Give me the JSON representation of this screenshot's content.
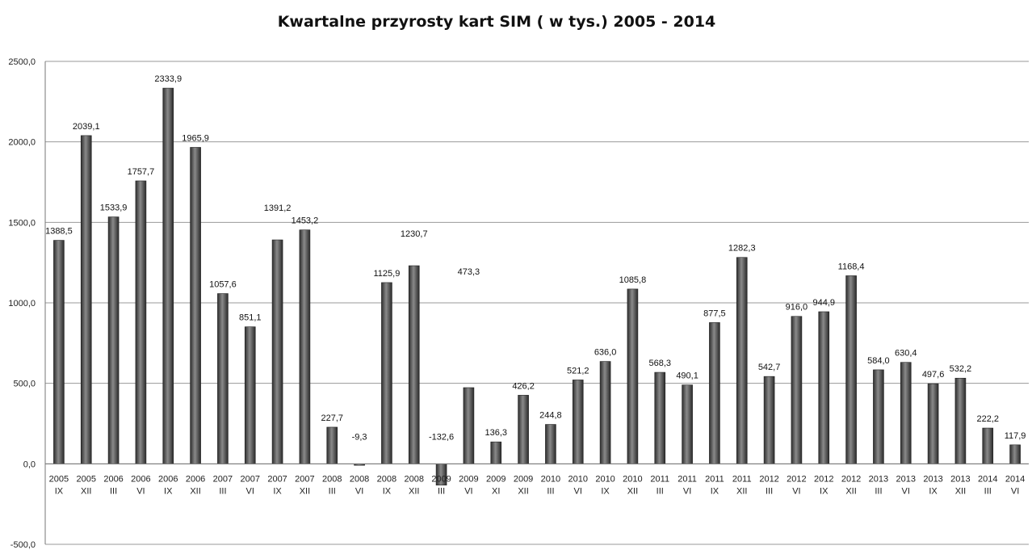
{
  "chart_data": {
    "type": "bar",
    "title": "Kwartalne przyrosty kart SIM  ( w tys.) 2005 - 2014",
    "xlabel": "",
    "ylabel": "",
    "ylim": [
      -500,
      2500
    ],
    "y_ticks": [
      "-500,0",
      "0,0",
      "500,0",
      "1000,0",
      "1500,0",
      "2000,0",
      "2500,0"
    ],
    "y_tick_values": [
      -500,
      0,
      500,
      1000,
      1500,
      2000,
      2500
    ],
    "grid": true,
    "legend": "none",
    "bar_color": "#4a4a4a",
    "categories": [
      {
        "year": "2005",
        "q": "IX"
      },
      {
        "year": "2005",
        "q": "XII"
      },
      {
        "year": "2006",
        "q": "III"
      },
      {
        "year": "2006",
        "q": "VI"
      },
      {
        "year": "2006",
        "q": "IX"
      },
      {
        "year": "2006",
        "q": "XII"
      },
      {
        "year": "2007",
        "q": "III"
      },
      {
        "year": "2007",
        "q": "VI"
      },
      {
        "year": "2007",
        "q": "IX"
      },
      {
        "year": "2007",
        "q": "XII"
      },
      {
        "year": "2008",
        "q": "III"
      },
      {
        "year": "2008",
        "q": "VI"
      },
      {
        "year": "2008",
        "q": "IX"
      },
      {
        "year": "2008",
        "q": "XII"
      },
      {
        "year": "2009",
        "q": "III"
      },
      {
        "year": "2009",
        "q": "VI"
      },
      {
        "year": "2009",
        "q": "XI"
      },
      {
        "year": "2009",
        "q": "XII"
      },
      {
        "year": "2010",
        "q": "III"
      },
      {
        "year": "2010",
        "q": "VI"
      },
      {
        "year": "2010",
        "q": "IX"
      },
      {
        "year": "2010",
        "q": "XII"
      },
      {
        "year": "2011",
        "q": "III"
      },
      {
        "year": "2011",
        "q": "VI"
      },
      {
        "year": "2011",
        "q": "IX"
      },
      {
        "year": "2011",
        "q": "XII"
      },
      {
        "year": "2012",
        "q": "III"
      },
      {
        "year": "2012",
        "q": "VI"
      },
      {
        "year": "2012",
        "q": "IX"
      },
      {
        "year": "2012",
        "q": "XII"
      },
      {
        "year": "2013",
        "q": "III"
      },
      {
        "year": "2013",
        "q": "VI"
      },
      {
        "year": "2013",
        "q": "IX"
      },
      {
        "year": "2013",
        "q": "XII"
      },
      {
        "year": "2014",
        "q": "III"
      },
      {
        "year": "2014",
        "q": "VI"
      }
    ],
    "values": [
      1388.5,
      2039.1,
      1533.9,
      1757.7,
      2333.9,
      1965.9,
      1057.6,
      851.1,
      1391.2,
      1453.2,
      227.7,
      -9.3,
      1125.9,
      1230.7,
      -132.6,
      473.3,
      136.3,
      426.2,
      244.8,
      521.2,
      636.0,
      1085.8,
      568.3,
      490.1,
      877.5,
      1282.3,
      542.7,
      916.0,
      944.9,
      1168.4,
      584.0,
      630.4,
      497.6,
      532.2,
      222.2,
      117.9
    ],
    "data_labels": [
      "1388,5",
      "2039,1",
      "1533,9",
      "1757,7",
      "2333,9",
      "1965,9",
      "1057,6",
      "851,1",
      "1391,2",
      "1453,2",
      "227,7",
      "-9,3",
      "1125,9",
      "1230,7",
      "-132,6",
      "473,3",
      "136,3",
      "426,2",
      "244,8",
      "521,2",
      "636,0",
      "1085,8",
      "568,3",
      "490,1",
      "877,5",
      "1282,3",
      "542,7",
      "916,0",
      "944,9",
      "1168,4",
      "584,0",
      "630,4",
      "497,6",
      "532,2",
      "222,2",
      "117,9"
    ]
  }
}
